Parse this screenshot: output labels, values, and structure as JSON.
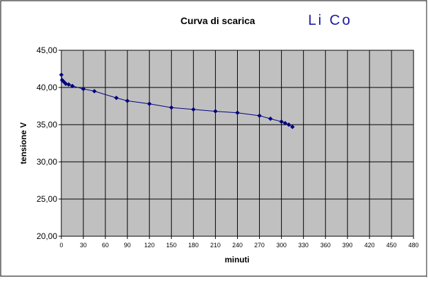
{
  "chart_data": {
    "type": "line",
    "title": "Curva di scarica",
    "annotation": "Li Co",
    "xlabel": "minuti",
    "ylabel": "tensione V",
    "xlim": [
      0,
      480
    ],
    "ylim": [
      20,
      45
    ],
    "x_ticks": [
      0,
      30,
      60,
      90,
      120,
      150,
      180,
      210,
      240,
      270,
      300,
      330,
      360,
      390,
      420,
      450,
      480
    ],
    "x_tick_labels": [
      "0",
      "30",
      "60",
      "90",
      "120",
      "150",
      "180",
      "210",
      "240",
      "270",
      "300",
      "330",
      "360",
      "390",
      "420",
      "450",
      "480"
    ],
    "y_ticks": [
      20,
      25,
      30,
      35,
      40,
      45
    ],
    "y_tick_labels": [
      "20,00",
      "25,00",
      "30,00",
      "35,00",
      "40,00",
      "45,00"
    ],
    "grid": true,
    "legend": "none",
    "colors": {
      "plot_background": "#c0c0c0",
      "series": "#000080",
      "annotation": "#1a1aa0",
      "gridline": "#000000"
    },
    "series": [
      {
        "x": [
          0,
          1,
          3,
          6,
          10,
          15,
          30,
          45,
          75,
          90,
          120,
          150,
          180,
          210,
          240,
          270,
          285,
          300,
          305,
          310,
          315
        ],
        "y": [
          41.7,
          41.0,
          40.8,
          40.5,
          40.4,
          40.2,
          39.8,
          39.5,
          38.6,
          38.2,
          37.8,
          37.3,
          37.05,
          36.8,
          36.6,
          36.2,
          35.8,
          35.4,
          35.2,
          35.0,
          34.7
        ]
      }
    ]
  }
}
